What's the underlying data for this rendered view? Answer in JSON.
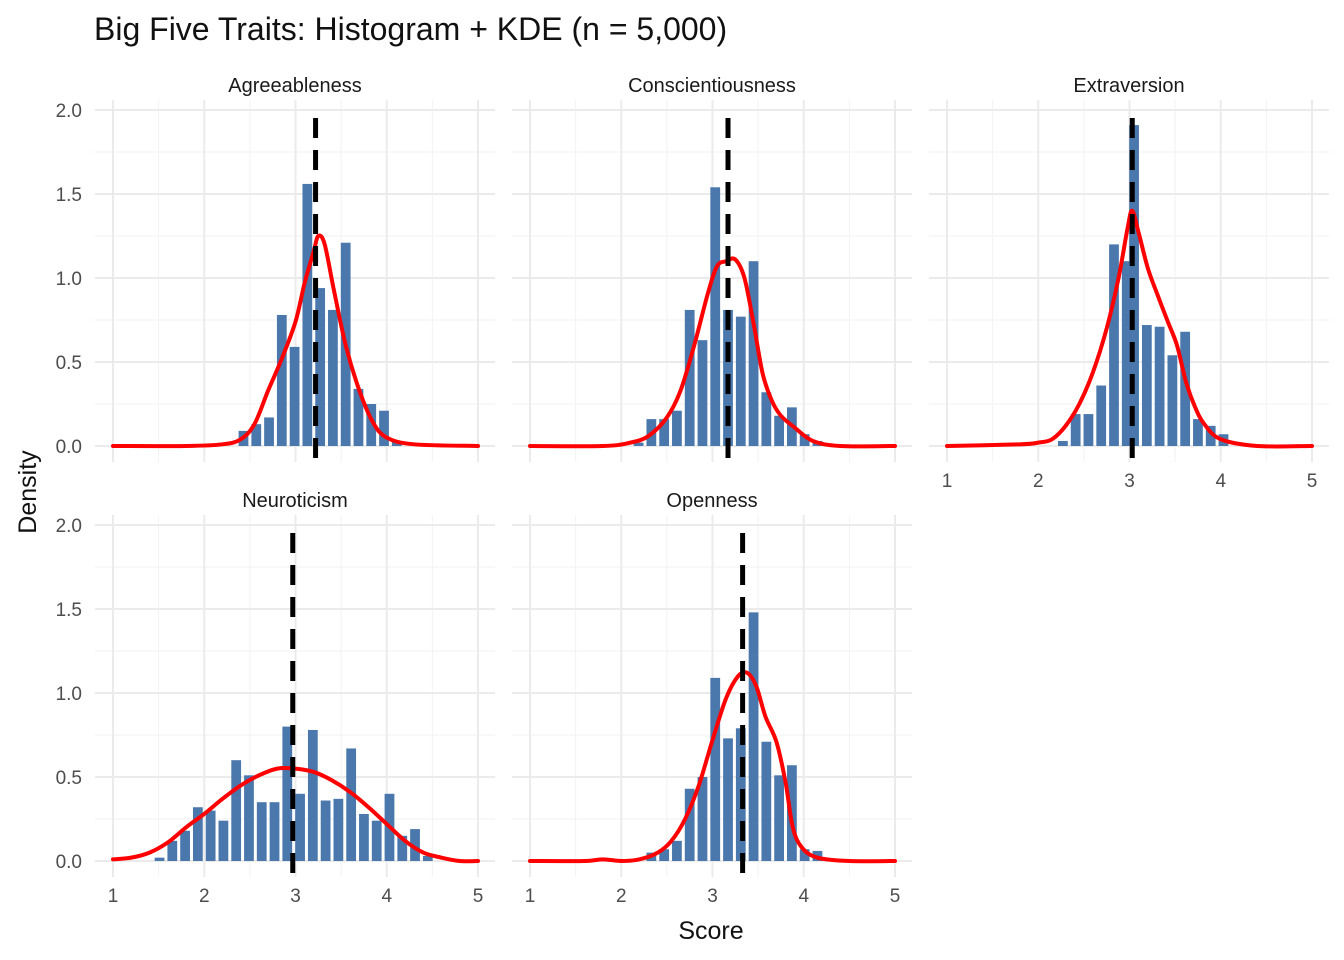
{
  "chart_data": {
    "type": "bar",
    "title": "Big Five Traits: Histogram + KDE (n = 5,000)",
    "xlabel": "Score",
    "ylabel": "Density",
    "xlim": [
      1,
      5
    ],
    "ylim": [
      0,
      2.0
    ],
    "x_ticks": [
      "1",
      "2",
      "3",
      "4",
      "5"
    ],
    "y_ticks": [
      "0.0",
      "0.5",
      "1.0",
      "1.5",
      "2.0"
    ],
    "grid": true,
    "bin_width": 0.14,
    "colors": {
      "bars": "#4a78ad",
      "kde": "#ff0000",
      "mean_line": "#000000",
      "grid": "#ebebeb"
    },
    "panels": [
      {
        "name": "Agreeableness",
        "bins": [
          {
            "x": 2.43,
            "y": 0.09
          },
          {
            "x": 2.57,
            "y": 0.13
          },
          {
            "x": 2.71,
            "y": 0.17
          },
          {
            "x": 2.85,
            "y": 0.78
          },
          {
            "x": 2.99,
            "y": 0.59
          },
          {
            "x": 3.13,
            "y": 1.56
          },
          {
            "x": 3.27,
            "y": 0.94
          },
          {
            "x": 3.41,
            "y": 0.81
          },
          {
            "x": 3.55,
            "y": 1.21
          },
          {
            "x": 3.69,
            "y": 0.34
          },
          {
            "x": 3.83,
            "y": 0.25
          },
          {
            "x": 3.97,
            "y": 0.21
          },
          {
            "x": 4.11,
            "y": 0.03
          }
        ],
        "mean": 3.22,
        "kde": [
          {
            "x": 1.0,
            "y": 0.0
          },
          {
            "x": 1.8,
            "y": 0.0
          },
          {
            "x": 2.2,
            "y": 0.01
          },
          {
            "x": 2.4,
            "y": 0.04
          },
          {
            "x": 2.55,
            "y": 0.13
          },
          {
            "x": 2.7,
            "y": 0.33
          },
          {
            "x": 2.85,
            "y": 0.52
          },
          {
            "x": 3.0,
            "y": 0.74
          },
          {
            "x": 3.1,
            "y": 0.97
          },
          {
            "x": 3.2,
            "y": 1.16
          },
          {
            "x": 3.25,
            "y": 1.25
          },
          {
            "x": 3.32,
            "y": 1.2
          },
          {
            "x": 3.42,
            "y": 0.93
          },
          {
            "x": 3.55,
            "y": 0.6
          },
          {
            "x": 3.7,
            "y": 0.33
          },
          {
            "x": 3.85,
            "y": 0.14
          },
          {
            "x": 4.0,
            "y": 0.05
          },
          {
            "x": 4.3,
            "y": 0.01
          },
          {
            "x": 5.0,
            "y": 0.0
          }
        ]
      },
      {
        "name": "Conscientiousness",
        "bins": [
          {
            "x": 2.19,
            "y": 0.02
          },
          {
            "x": 2.33,
            "y": 0.16
          },
          {
            "x": 2.47,
            "y": 0.16
          },
          {
            "x": 2.61,
            "y": 0.21
          },
          {
            "x": 2.75,
            "y": 0.81
          },
          {
            "x": 2.89,
            "y": 0.63
          },
          {
            "x": 3.03,
            "y": 1.54
          },
          {
            "x": 3.17,
            "y": 0.81
          },
          {
            "x": 3.31,
            "y": 0.77
          },
          {
            "x": 3.45,
            "y": 1.1
          },
          {
            "x": 3.59,
            "y": 0.32
          },
          {
            "x": 3.73,
            "y": 0.18
          },
          {
            "x": 3.87,
            "y": 0.23
          },
          {
            "x": 4.01,
            "y": 0.07
          },
          {
            "x": 4.15,
            "y": 0.03
          }
        ],
        "mean": 3.17,
        "kde": [
          {
            "x": 1.0,
            "y": 0.0
          },
          {
            "x": 1.8,
            "y": 0.0
          },
          {
            "x": 2.1,
            "y": 0.02
          },
          {
            "x": 2.3,
            "y": 0.06
          },
          {
            "x": 2.5,
            "y": 0.17
          },
          {
            "x": 2.65,
            "y": 0.33
          },
          {
            "x": 2.8,
            "y": 0.6
          },
          {
            "x": 2.95,
            "y": 0.91
          },
          {
            "x": 3.05,
            "y": 1.07
          },
          {
            "x": 3.15,
            "y": 1.1
          },
          {
            "x": 3.25,
            "y": 1.11
          },
          {
            "x": 3.35,
            "y": 1.0
          },
          {
            "x": 3.45,
            "y": 0.73
          },
          {
            "x": 3.55,
            "y": 0.43
          },
          {
            "x": 3.65,
            "y": 0.27
          },
          {
            "x": 3.75,
            "y": 0.18
          },
          {
            "x": 3.9,
            "y": 0.11
          },
          {
            "x": 4.1,
            "y": 0.03
          },
          {
            "x": 4.4,
            "y": 0.0
          },
          {
            "x": 5.0,
            "y": 0.0
          }
        ]
      },
      {
        "name": "Extraversion",
        "bins": [
          {
            "x": 2.27,
            "y": 0.03
          },
          {
            "x": 2.41,
            "y": 0.19
          },
          {
            "x": 2.55,
            "y": 0.19
          },
          {
            "x": 2.69,
            "y": 0.36
          },
          {
            "x": 2.83,
            "y": 1.2
          },
          {
            "x": 2.97,
            "y": 1.1
          },
          {
            "x": 3.05,
            "y": 1.91
          },
          {
            "x": 3.19,
            "y": 0.72
          },
          {
            "x": 3.33,
            "y": 0.71
          },
          {
            "x": 3.47,
            "y": 0.54
          },
          {
            "x": 3.61,
            "y": 0.68
          },
          {
            "x": 3.75,
            "y": 0.16
          },
          {
            "x": 3.89,
            "y": 0.12
          },
          {
            "x": 4.03,
            "y": 0.07
          }
        ],
        "mean": 3.03,
        "kde": [
          {
            "x": 1.0,
            "y": 0.0
          },
          {
            "x": 1.8,
            "y": 0.01
          },
          {
            "x": 2.0,
            "y": 0.02
          },
          {
            "x": 2.15,
            "y": 0.04
          },
          {
            "x": 2.3,
            "y": 0.12
          },
          {
            "x": 2.45,
            "y": 0.25
          },
          {
            "x": 2.6,
            "y": 0.44
          },
          {
            "x": 2.75,
            "y": 0.7
          },
          {
            "x": 2.88,
            "y": 1.0
          },
          {
            "x": 2.98,
            "y": 1.3
          },
          {
            "x": 3.03,
            "y": 1.4
          },
          {
            "x": 3.1,
            "y": 1.27
          },
          {
            "x": 3.2,
            "y": 1.06
          },
          {
            "x": 3.3,
            "y": 0.91
          },
          {
            "x": 3.42,
            "y": 0.74
          },
          {
            "x": 3.52,
            "y": 0.6
          },
          {
            "x": 3.62,
            "y": 0.38
          },
          {
            "x": 3.72,
            "y": 0.23
          },
          {
            "x": 3.82,
            "y": 0.13
          },
          {
            "x": 4.0,
            "y": 0.04
          },
          {
            "x": 4.4,
            "y": 0.0
          },
          {
            "x": 5.0,
            "y": 0.0
          }
        ]
      },
      {
        "name": "Neuroticism",
        "bins": [
          {
            "x": 1.51,
            "y": 0.02
          },
          {
            "x": 1.65,
            "y": 0.12
          },
          {
            "x": 1.79,
            "y": 0.18
          },
          {
            "x": 1.93,
            "y": 0.32
          },
          {
            "x": 2.07,
            "y": 0.3
          },
          {
            "x": 2.21,
            "y": 0.24
          },
          {
            "x": 2.35,
            "y": 0.6
          },
          {
            "x": 2.49,
            "y": 0.51
          },
          {
            "x": 2.63,
            "y": 0.35
          },
          {
            "x": 2.77,
            "y": 0.35
          },
          {
            "x": 2.91,
            "y": 0.8
          },
          {
            "x": 3.05,
            "y": 0.4
          },
          {
            "x": 3.19,
            "y": 0.78
          },
          {
            "x": 3.33,
            "y": 0.36
          },
          {
            "x": 3.47,
            "y": 0.37
          },
          {
            "x": 3.61,
            "y": 0.67
          },
          {
            "x": 3.75,
            "y": 0.28
          },
          {
            "x": 3.89,
            "y": 0.24
          },
          {
            "x": 4.03,
            "y": 0.4
          },
          {
            "x": 4.17,
            "y": 0.15
          },
          {
            "x": 4.31,
            "y": 0.19
          },
          {
            "x": 4.45,
            "y": 0.03
          }
        ],
        "mean": 2.97,
        "kde": [
          {
            "x": 1.0,
            "y": 0.01
          },
          {
            "x": 1.2,
            "y": 0.02
          },
          {
            "x": 1.4,
            "y": 0.05
          },
          {
            "x": 1.6,
            "y": 0.11
          },
          {
            "x": 1.8,
            "y": 0.2
          },
          {
            "x": 2.0,
            "y": 0.28
          },
          {
            "x": 2.2,
            "y": 0.37
          },
          {
            "x": 2.4,
            "y": 0.45
          },
          {
            "x": 2.6,
            "y": 0.51
          },
          {
            "x": 2.8,
            "y": 0.55
          },
          {
            "x": 3.0,
            "y": 0.55
          },
          {
            "x": 3.2,
            "y": 0.53
          },
          {
            "x": 3.4,
            "y": 0.48
          },
          {
            "x": 3.6,
            "y": 0.41
          },
          {
            "x": 3.8,
            "y": 0.32
          },
          {
            "x": 4.0,
            "y": 0.22
          },
          {
            "x": 4.2,
            "y": 0.12
          },
          {
            "x": 4.4,
            "y": 0.05
          },
          {
            "x": 4.6,
            "y": 0.02
          },
          {
            "x": 4.8,
            "y": 0.0
          },
          {
            "x": 5.0,
            "y": 0.0
          }
        ]
      },
      {
        "name": "Openness",
        "bins": [
          {
            "x": 2.33,
            "y": 0.05
          },
          {
            "x": 2.47,
            "y": 0.07
          },
          {
            "x": 2.61,
            "y": 0.12
          },
          {
            "x": 2.75,
            "y": 0.43
          },
          {
            "x": 2.89,
            "y": 0.5
          },
          {
            "x": 3.03,
            "y": 1.09
          },
          {
            "x": 3.17,
            "y": 0.73
          },
          {
            "x": 3.31,
            "y": 0.79
          },
          {
            "x": 3.45,
            "y": 1.48
          },
          {
            "x": 3.59,
            "y": 0.71
          },
          {
            "x": 3.73,
            "y": 0.51
          },
          {
            "x": 3.87,
            "y": 0.57
          },
          {
            "x": 4.01,
            "y": 0.07
          },
          {
            "x": 4.15,
            "y": 0.06
          }
        ],
        "mean": 3.33,
        "kde": [
          {
            "x": 1.0,
            "y": 0.0
          },
          {
            "x": 1.6,
            "y": 0.0
          },
          {
            "x": 1.8,
            "y": 0.01
          },
          {
            "x": 2.0,
            "y": 0.0
          },
          {
            "x": 2.2,
            "y": 0.01
          },
          {
            "x": 2.4,
            "y": 0.05
          },
          {
            "x": 2.55,
            "y": 0.12
          },
          {
            "x": 2.7,
            "y": 0.25
          },
          {
            "x": 2.85,
            "y": 0.45
          },
          {
            "x": 3.0,
            "y": 0.72
          },
          {
            "x": 3.15,
            "y": 0.97
          },
          {
            "x": 3.28,
            "y": 1.1
          },
          {
            "x": 3.38,
            "y": 1.12
          },
          {
            "x": 3.48,
            "y": 1.04
          },
          {
            "x": 3.58,
            "y": 0.86
          },
          {
            "x": 3.7,
            "y": 0.71
          },
          {
            "x": 3.8,
            "y": 0.47
          },
          {
            "x": 3.88,
            "y": 0.2
          },
          {
            "x": 3.98,
            "y": 0.08
          },
          {
            "x": 4.15,
            "y": 0.02
          },
          {
            "x": 4.5,
            "y": 0.0
          },
          {
            "x": 5.0,
            "y": 0.0
          }
        ]
      }
    ]
  }
}
